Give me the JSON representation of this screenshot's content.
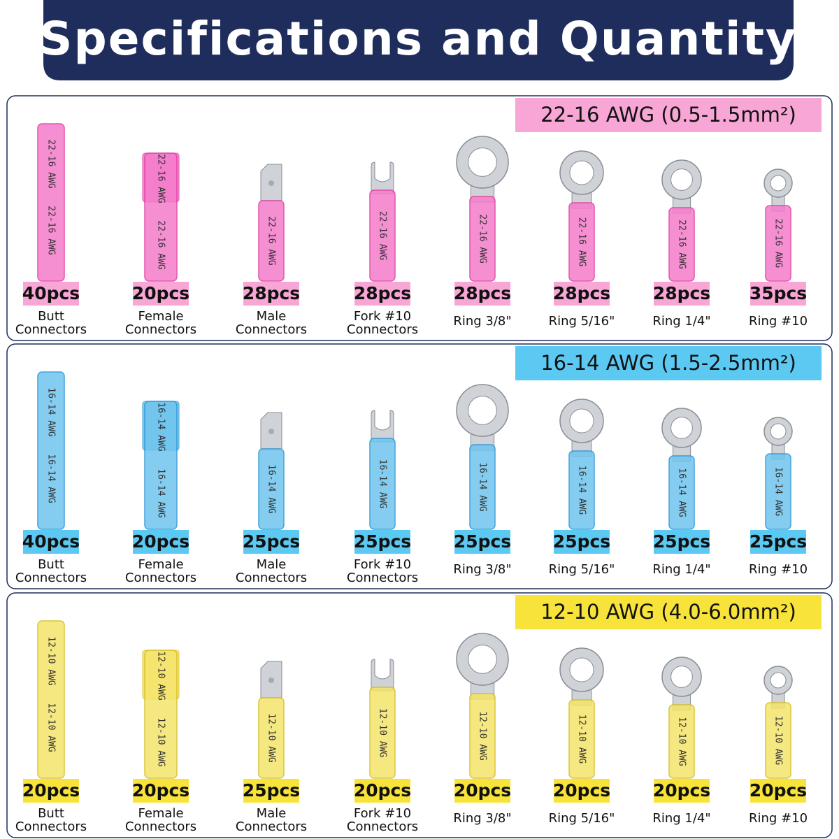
{
  "header": {
    "title": "Specifications and Quantity"
  },
  "sections": [
    {
      "heading": "22-16 AWG (0.5-1.5mm²)",
      "marking": "22-16 AWG",
      "items": [
        {
          "quantity": "40pcs",
          "name": [
            "Butt",
            "Connectors"
          ]
        },
        {
          "quantity": "20pcs",
          "name": [
            "Female",
            "Connectors"
          ]
        },
        {
          "quantity": "28pcs",
          "name": [
            "Male",
            "Connectors"
          ]
        },
        {
          "quantity": "28pcs",
          "name": [
            "Fork #10",
            "Connectors"
          ]
        },
        {
          "quantity": "28pcs",
          "name": [
            "Ring 3/8\""
          ]
        },
        {
          "quantity": "28pcs",
          "name": [
            "Ring 5/16\""
          ]
        },
        {
          "quantity": "28pcs",
          "name": [
            "Ring 1/4\""
          ]
        },
        {
          "quantity": "35pcs",
          "name": [
            "Ring #10"
          ]
        }
      ]
    },
    {
      "heading": "16-14 AWG (1.5-2.5mm²)",
      "marking": "16-14 AWG",
      "items": [
        {
          "quantity": "40pcs",
          "name": [
            "Butt",
            "Connectors"
          ]
        },
        {
          "quantity": "20pcs",
          "name": [
            "Female",
            "Connectors"
          ]
        },
        {
          "quantity": "25pcs",
          "name": [
            "Male",
            "Connectors"
          ]
        },
        {
          "quantity": "25pcs",
          "name": [
            "Fork #10",
            "Connectors"
          ]
        },
        {
          "quantity": "25pcs",
          "name": [
            "Ring 3/8\""
          ]
        },
        {
          "quantity": "25pcs",
          "name": [
            "Ring 5/16\""
          ]
        },
        {
          "quantity": "25pcs",
          "name": [
            "Ring 1/4\""
          ]
        },
        {
          "quantity": "25pcs",
          "name": [
            "Ring #10"
          ]
        }
      ]
    },
    {
      "heading": "12-10 AWG (4.0-6.0mm²)",
      "marking": "12-10 AWG",
      "items": [
        {
          "quantity": "20pcs",
          "name": [
            "Butt",
            "Connectors"
          ]
        },
        {
          "quantity": "20pcs",
          "name": [
            "Female",
            "Connectors"
          ]
        },
        {
          "quantity": "25pcs",
          "name": [
            "Male",
            "Connectors"
          ]
        },
        {
          "quantity": "20pcs",
          "name": [
            "Fork #10",
            "Connectors"
          ]
        },
        {
          "quantity": "20pcs",
          "name": [
            "Ring 3/8\""
          ]
        },
        {
          "quantity": "20pcs",
          "name": [
            "Ring 5/16\""
          ]
        },
        {
          "quantity": "20pcs",
          "name": [
            "Ring 1/4\""
          ]
        },
        {
          "quantity": "20pcs",
          "name": [
            "Ring #10"
          ]
        }
      ]
    }
  ]
}
